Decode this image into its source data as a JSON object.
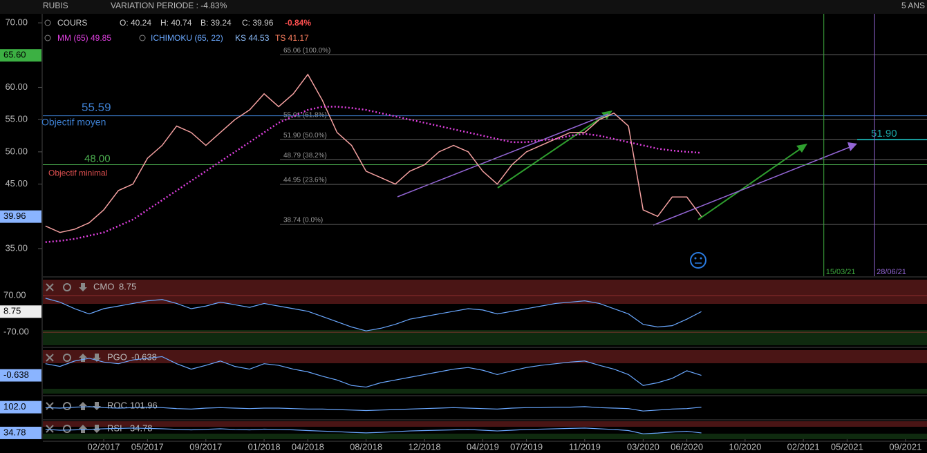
{
  "header": {
    "ticker": "RUBIS",
    "variation": "VARIATION PERIODE : -4.83%",
    "period": "5 ANS"
  },
  "legend": {
    "cours": "COURS",
    "open": "O: 40.24",
    "high": "H: 40.74",
    "low": "B: 39.24",
    "close": "C: 39.96",
    "change": "-0.84%",
    "mm": "MM (65) 49.85",
    "ichimoku": "ICHIMOKU (65, 22)",
    "ks": "KS 44.53",
    "ts": "TS 41.17"
  },
  "main": {
    "xlim": [
      2016.735,
      2021.79
    ],
    "ylim": [
      31.25,
      71.4
    ],
    "yticks": [
      {
        "value": 70,
        "label": "70.00"
      },
      {
        "value": 60,
        "label": "60.00"
      },
      {
        "value": 55,
        "label": "55.00"
      },
      {
        "value": 50,
        "label": "50.00"
      },
      {
        "value": 45,
        "label": "45.00"
      },
      {
        "value": 35,
        "label": "35.00"
      }
    ],
    "xticks": [
      {
        "value": 2017.083,
        "label": "02/2017"
      },
      {
        "value": 2017.333,
        "label": "05/2017"
      },
      {
        "value": 2017.667,
        "label": "09/2017"
      },
      {
        "value": 2018.0,
        "label": "01/2018"
      },
      {
        "value": 2018.25,
        "label": "04/2018"
      },
      {
        "value": 2018.583,
        "label": "08/2018"
      },
      {
        "value": 2018.917,
        "label": "12/2018"
      },
      {
        "value": 2019.25,
        "label": "04/2019"
      },
      {
        "value": 2019.5,
        "label": "07/2019"
      },
      {
        "value": 2019.833,
        "label": "11/2019"
      },
      {
        "value": 2020.167,
        "label": "03/2020"
      },
      {
        "value": 2020.417,
        "label": "06/2020"
      },
      {
        "value": 2020.75,
        "label": "10/2020"
      },
      {
        "value": 2021.083,
        "label": "02/2021"
      },
      {
        "value": 2021.333,
        "label": "05/2021"
      },
      {
        "value": 2021.667,
        "label": "09/2021"
      }
    ],
    "high_badge": {
      "value": 65.6,
      "label": "65.60"
    },
    "last_badge": {
      "value": 39.96,
      "label": "39.96"
    },
    "fibonacci": [
      {
        "value": 65.06,
        "label": "65.06 (100.0%)"
      },
      {
        "value": 55.01,
        "label": "55.01 (61.8%)"
      },
      {
        "value": 51.9,
        "label": "51.90 (50.0%)"
      },
      {
        "value": 48.79,
        "label": "48.79 (38.2%)"
      },
      {
        "value": 44.95,
        "label": "44.95 (23.6%)"
      },
      {
        "value": 38.74,
        "label": "38.74 (0.0%)"
      }
    ],
    "objectives": [
      {
        "value": 55.59,
        "label": "55.59",
        "note": "Objectif moyen",
        "color": "#3d7fd0"
      },
      {
        "value": 48,
        "label": "48.00",
        "note": "Objectif minimal",
        "color": "#4caf50"
      }
    ],
    "target": {
      "value": 51.9,
      "label": "51.90",
      "color": "#1aa5a5"
    },
    "vlines": [
      {
        "value": 2021.2,
        "label": "15/03/21",
        "color": "#3ea83e"
      },
      {
        "value": 2021.49,
        "label": "28/06/21",
        "color": "#9466d6"
      }
    ],
    "x": [
      2016.75,
      2016.833,
      2016.917,
      2017.0,
      2017.083,
      2017.167,
      2017.25,
      2017.333,
      2017.417,
      2017.5,
      2017.583,
      2017.667,
      2017.75,
      2017.833,
      2017.917,
      2018.0,
      2018.083,
      2018.167,
      2018.25,
      2018.333,
      2018.417,
      2018.5,
      2018.583,
      2018.667,
      2018.75,
      2018.833,
      2018.917,
      2019.0,
      2019.083,
      2019.167,
      2019.25,
      2019.333,
      2019.417,
      2019.5,
      2019.583,
      2019.667,
      2019.75,
      2019.833,
      2019.917,
      2020.0,
      2020.083,
      2020.167,
      2020.25,
      2020.333,
      2020.417,
      2020.5
    ],
    "series": [
      {
        "name": "COURS",
        "color": "#f4a0a0",
        "values": [
          38.5,
          37.5,
          38,
          39,
          41,
          44,
          45,
          49,
          51,
          54,
          53,
          51,
          53,
          55,
          56.5,
          59,
          57,
          59,
          62,
          58,
          53,
          51,
          47,
          46,
          45,
          47,
          48,
          50,
          51,
          50,
          47,
          45,
          48,
          50,
          51,
          52,
          53,
          53,
          55,
          56,
          54,
          41,
          40,
          43,
          43,
          39.96
        ]
      },
      {
        "name": "MM (65)",
        "color": "#e040e0",
        "values": [
          36,
          36.2,
          36.5,
          37,
          37.5,
          38.5,
          39.5,
          41,
          42.5,
          44,
          45.5,
          47,
          48.5,
          50,
          51.5,
          53,
          54.5,
          55.5,
          56.5,
          57,
          57,
          56.8,
          56.5,
          56,
          55.5,
          55,
          54.5,
          54,
          53.5,
          53,
          52.5,
          52,
          51.5,
          51.5,
          51.8,
          52,
          52.5,
          52.8,
          52.5,
          52,
          51.5,
          51,
          50.5,
          50.2,
          50,
          49.85
        ]
      }
    ]
  },
  "panels": [
    {
      "name": "CMO",
      "value": "8.75",
      "badge": {
        "value": 8.75,
        "label": "8.75"
      },
      "ylim": [
        -120,
        131
      ],
      "yticks": [
        {
          "value": 70,
          "label": "70.00"
        },
        {
          "value": -70,
          "label": "-70.00"
        }
      ],
      "color": "#6aa8ff",
      "values": [
        60,
        45,
        20,
        0,
        20,
        30,
        40,
        50,
        55,
        40,
        20,
        30,
        45,
        35,
        25,
        40,
        30,
        20,
        10,
        -10,
        -30,
        -50,
        -65,
        -55,
        -40,
        -20,
        -10,
        0,
        10,
        20,
        15,
        0,
        10,
        20,
        30,
        40,
        45,
        50,
        40,
        20,
        0,
        -40,
        -50,
        -45,
        -20,
        8.75
      ]
    },
    {
      "name": "PGO",
      "value": "-0.638",
      "badge": {
        "value": -0.638,
        "label": "-0.638"
      },
      "ylim": [
        -4,
        4
      ],
      "yticks": [],
      "color": "#6aa8ff",
      "values": [
        1.5,
        1,
        2,
        2.5,
        1.8,
        1.5,
        2.2,
        2.5,
        2.8,
        1.5,
        0.5,
        1.2,
        2,
        1,
        0.5,
        1.5,
        1.2,
        0.5,
        0,
        -0.8,
        -1.5,
        -2.5,
        -2.8,
        -2,
        -1.5,
        -1,
        -0.5,
        0,
        0.5,
        0.8,
        0.3,
        -0.5,
        0.2,
        0.8,
        1.2,
        1.5,
        1.8,
        2,
        1.2,
        0.5,
        -0.5,
        -2.5,
        -2,
        -1.2,
        0.2,
        -0.638
      ]
    },
    {
      "name": "ROC",
      "value": "101.96",
      "badge": {
        "value": 102,
        "label": "102.0"
      },
      "ylim": [
        80,
        120
      ],
      "yticks": [],
      "color": "#6aa8ff",
      "values": [
        101,
        100,
        102,
        103,
        101,
        100,
        101,
        102,
        101,
        99,
        98,
        100,
        101,
        100,
        99,
        100,
        100,
        99,
        98,
        98,
        97,
        96,
        95,
        96,
        97,
        98,
        99,
        100,
        101,
        100,
        99,
        98,
        100,
        101,
        101,
        102,
        102,
        103,
        101,
        100,
        99,
        94,
        96,
        98,
        99,
        101.96
      ]
    },
    {
      "name": "RSI",
      "value": "34.78",
      "badge": {
        "value": 34.78,
        "label": "34.78"
      },
      "ylim": [
        0,
        100
      ],
      "yticks": [],
      "color": "#6aa8ff",
      "values": [
        55,
        50,
        52,
        55,
        58,
        60,
        62,
        60,
        58,
        55,
        52,
        55,
        58,
        54,
        52,
        56,
        54,
        52,
        48,
        45,
        42,
        38,
        35,
        38,
        42,
        46,
        48,
        50,
        52,
        54,
        50,
        46,
        50,
        54,
        56,
        58,
        60,
        62,
        58,
        54,
        48,
        30,
        34,
        40,
        44,
        34.78
      ]
    }
  ]
}
